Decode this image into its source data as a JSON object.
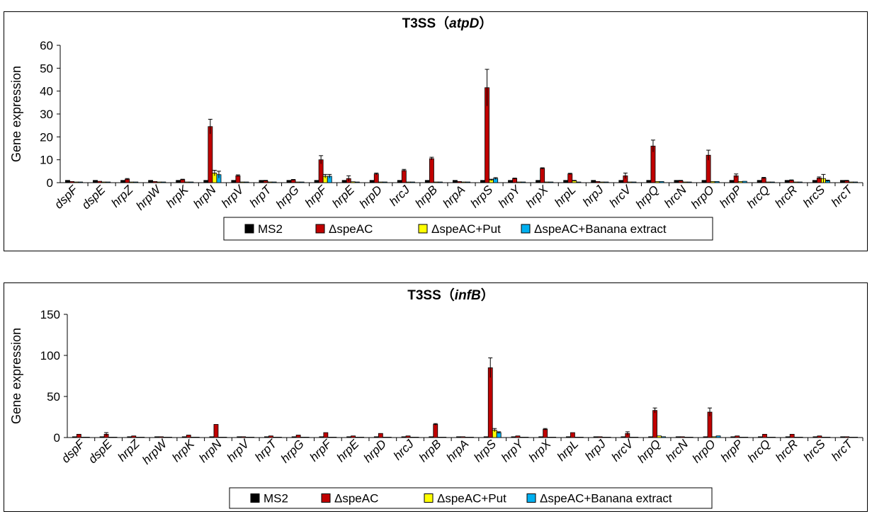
{
  "chart_data": [
    {
      "type": "bar",
      "title_main": "T3SS",
      "title_paren_open": "（",
      "title_gene": "atpD",
      "title_paren_close": "）",
      "xlabel": "",
      "ylabel": "Gene expression",
      "ylim": [
        0,
        60
      ],
      "yticks": [
        0,
        10,
        20,
        30,
        40,
        50,
        60
      ],
      "legend_position": "bottom",
      "grid": false,
      "categories": [
        "dspF",
        "dspE",
        "hrpZ",
        "hrpW",
        "hrpK",
        "hrpN",
        "hrpV",
        "hrpT",
        "hrpG",
        "hrpF",
        "hrpE",
        "hrpD",
        "hrcJ",
        "hrpB",
        "hrpA",
        "hrpS",
        "hrpY",
        "hrpX",
        "hrpL",
        "hrpJ",
        "hrcV",
        "hrpQ",
        "hrcN",
        "hrpO",
        "hrpP",
        "hrcQ",
        "hrcR",
        "hrcS",
        "hrcT"
      ],
      "series": [
        {
          "name": "MS2",
          "color": "#000000",
          "values": [
            1,
            1,
            1,
            1,
            1,
            1,
            1,
            1,
            1,
            1,
            1,
            1,
            1,
            1,
            1,
            1,
            1,
            1,
            1,
            1,
            1,
            1,
            1,
            1,
            1,
            1,
            1,
            1,
            1
          ],
          "errors": [
            0,
            0,
            0,
            0,
            0,
            0,
            0,
            0,
            0,
            0,
            0,
            0,
            0,
            0,
            0,
            0,
            0,
            0,
            0,
            0,
            0,
            0,
            0,
            0,
            0,
            0,
            0,
            0,
            0
          ]
        },
        {
          "name": "ΔspeAC",
          "color": "#C00000",
          "values": [
            0.5,
            0.6,
            1.5,
            0.5,
            1.3,
            24.5,
            3,
            0.8,
            1.2,
            10,
            1.8,
            3.8,
            5.3,
            10.5,
            0.5,
            41.5,
            1.8,
            6.2,
            3.8,
            0.5,
            3,
            16,
            0.8,
            12,
            3,
            2,
            1,
            2,
            0.8
          ],
          "errors": [
            0,
            0,
            0.3,
            0,
            0.2,
            3.2,
            0.4,
            0.2,
            0.2,
            1.8,
            1.2,
            0.4,
            0.5,
            0.6,
            0,
            8,
            0.2,
            0.3,
            0.3,
            0,
            1.2,
            2.6,
            0.2,
            2.2,
            0.8,
            0.3,
            0.2,
            0.5,
            0.2
          ]
        },
        {
          "name": "ΔspeAC+Put",
          "color": "#FFFF00",
          "values": [
            0.3,
            0.3,
            0.3,
            0.3,
            0.3,
            4.2,
            0.3,
            0.3,
            0.3,
            2.8,
            0.4,
            0.3,
            0.3,
            0.3,
            0.3,
            1.2,
            0.3,
            0.3,
            0.8,
            0.3,
            0.3,
            0.5,
            0.3,
            0.5,
            0.5,
            0.3,
            0.3,
            1.8,
            0.3
          ],
          "errors": [
            0,
            0,
            0,
            0,
            0,
            1.2,
            0,
            0,
            0,
            0.8,
            0,
            0,
            0,
            0,
            0,
            0.3,
            0,
            0,
            0.2,
            0,
            0,
            0,
            0,
            0,
            0,
            0,
            0,
            1.8,
            0
          ]
        },
        {
          "name": "ΔspeAC+Banana extract",
          "color": "#00B0F0",
          "values": [
            0.3,
            0.3,
            0.3,
            0.3,
            0.3,
            3.5,
            0.3,
            0.3,
            0.3,
            2.8,
            0.3,
            0.3,
            0.3,
            0.3,
            0.3,
            1.8,
            0.3,
            0.3,
            0.3,
            0.3,
            0.3,
            0.5,
            0.3,
            0.5,
            0.6,
            0.3,
            0.3,
            0.8,
            0.3
          ],
          "errors": [
            0,
            0,
            0,
            0,
            0,
            1.5,
            0,
            0,
            0,
            0.8,
            0,
            0,
            0,
            0,
            0,
            0.4,
            0,
            0,
            0,
            0,
            0,
            0,
            0,
            0,
            0,
            0,
            0,
            0.3,
            0
          ]
        }
      ]
    },
    {
      "type": "bar",
      "title_main": "T3SS",
      "title_paren_open": "（",
      "title_gene": "infB",
      "title_paren_close": "）",
      "xlabel": "",
      "ylabel": "Gene expression",
      "ylim": [
        0,
        150
      ],
      "yticks": [
        0,
        50,
        100,
        150
      ],
      "legend_position": "bottom",
      "grid": false,
      "categories": [
        "dspF",
        "dspE",
        "hrpZ",
        "hrpW",
        "hrpK",
        "hrpN",
        "hrpV",
        "hrpT",
        "hrpG",
        "hrpF",
        "hrpE",
        "hrpD",
        "hrcJ",
        "hrpB",
        "hrpA",
        "hrpS",
        "hrpY",
        "hrpX",
        "hrpL",
        "hrpJ",
        "hrcV",
        "hrpQ",
        "hrcN",
        "hrpO",
        "hrpP",
        "hrcQ",
        "hrcR",
        "hrcS",
        "hrcT"
      ],
      "series": [
        {
          "name": "MS2",
          "color": "#000000",
          "values": [
            1,
            1,
            1,
            1,
            1,
            1,
            1,
            1,
            1,
            1,
            1,
            1,
            1,
            1,
            1,
            1,
            1,
            1,
            1,
            1,
            1,
            1,
            1,
            1,
            1,
            1,
            1,
            1,
            1
          ],
          "errors": [
            0,
            0,
            0,
            0,
            0,
            0,
            0,
            0,
            0,
            0,
            0,
            0,
            0,
            0,
            0,
            0,
            0,
            0,
            0,
            0,
            0,
            0,
            0,
            0,
            0,
            0,
            0,
            0,
            0
          ]
        },
        {
          "name": "ΔspeAC",
          "color": "#C00000",
          "values": [
            4,
            4,
            2,
            1,
            3,
            16,
            1,
            2,
            3,
            6,
            2,
            5,
            2,
            16,
            1,
            85,
            2,
            10,
            6,
            1,
            5,
            33,
            1,
            31,
            2,
            4,
            4,
            2,
            1
          ],
          "errors": [
            0,
            2,
            0,
            0,
            0,
            0,
            0,
            0,
            0,
            0,
            0,
            0,
            0,
            1,
            0,
            12,
            0,
            1,
            0,
            0,
            2,
            3,
            0,
            5,
            0,
            0,
            0,
            0,
            0
          ]
        },
        {
          "name": "ΔspeAC+Put",
          "color": "#FFFF00",
          "values": [
            0.5,
            0.5,
            0.5,
            0.5,
            0.5,
            0.5,
            0.5,
            0.5,
            0.5,
            0.5,
            0.5,
            0.5,
            0.5,
            0.5,
            0.5,
            9,
            0.5,
            0.5,
            0.5,
            0.5,
            0.5,
            2,
            0.5,
            1,
            0.5,
            0.5,
            0.5,
            0.5,
            0.5
          ],
          "errors": [
            0,
            0,
            0,
            0,
            0,
            0,
            0,
            0,
            0,
            0,
            0,
            0,
            0,
            0,
            0,
            2,
            0,
            0,
            0,
            0,
            0,
            0,
            0,
            0,
            0,
            0,
            0,
            0,
            0
          ]
        },
        {
          "name": "ΔspeAC+Banana extract",
          "color": "#00B0F0",
          "values": [
            0.5,
            0.5,
            0.5,
            0.5,
            0.5,
            0.5,
            0.5,
            0.5,
            0.5,
            0.5,
            0.5,
            0.5,
            0.5,
            0.5,
            0.5,
            6,
            0.5,
            0.5,
            0.5,
            0.5,
            0.5,
            1,
            0.5,
            2,
            0.5,
            0.5,
            0.5,
            0.5,
            0.5
          ],
          "errors": [
            0,
            0,
            0,
            0,
            0,
            0,
            0,
            0,
            0,
            0,
            0,
            0,
            0,
            0,
            0,
            1,
            0,
            0,
            0,
            0,
            0,
            0,
            0,
            0,
            0,
            0,
            0,
            0,
            0
          ]
        }
      ]
    }
  ]
}
